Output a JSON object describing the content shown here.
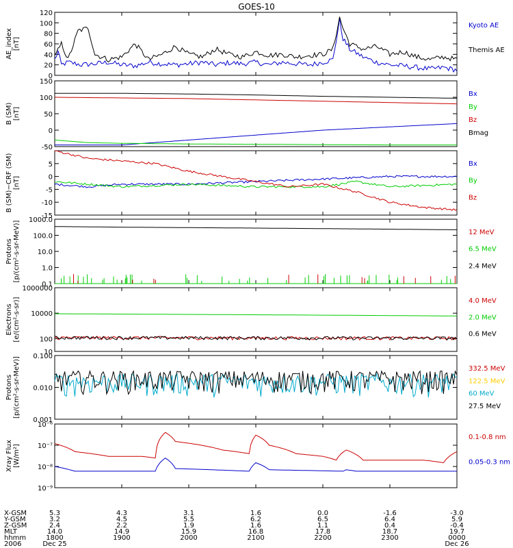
{
  "title": "GOES-10",
  "chart_data": [
    {
      "type": "line",
      "ylabel": "AE_index\n[nT]",
      "ylim": [
        0,
        120
      ],
      "yticks": [
        0,
        20,
        40,
        60,
        80,
        100,
        120
      ],
      "log": false,
      "series": [
        {
          "name": "Kyoto AE",
          "color": "#0000cc",
          "points": [
            [
              0,
              30
            ],
            [
              0.05,
              45
            ],
            [
              0.1,
              20
            ],
            [
              0.2,
              25
            ],
            [
              0.4,
              20
            ],
            [
              0.6,
              22
            ],
            [
              0.8,
              25
            ],
            [
              1.0,
              20
            ],
            [
              1.2,
              18
            ],
            [
              1.4,
              25
            ],
            [
              1.6,
              22
            ],
            [
              1.8,
              20
            ],
            [
              2.0,
              22
            ],
            [
              2.2,
              25
            ],
            [
              2.4,
              20
            ],
            [
              2.6,
              24
            ],
            [
              2.8,
              22
            ],
            [
              3.0,
              25
            ],
            [
              3.2,
              20
            ],
            [
              3.4,
              25
            ],
            [
              3.6,
              22
            ],
            [
              3.8,
              20
            ],
            [
              4.0,
              25
            ],
            [
              4.15,
              30
            ],
            [
              4.25,
              105
            ],
            [
              4.3,
              70
            ],
            [
              4.4,
              50
            ],
            [
              4.6,
              35
            ],
            [
              4.8,
              25
            ],
            [
              5.0,
              20
            ],
            [
              5.2,
              18
            ],
            [
              5.4,
              15
            ],
            [
              5.6,
              12
            ],
            [
              5.8,
              15
            ],
            [
              6.0,
              10
            ]
          ]
        },
        {
          "name": "Themis AE",
          "color": "#000000",
          "points": [
            [
              0,
              35
            ],
            [
              0.1,
              60
            ],
            [
              0.2,
              30
            ],
            [
              0.35,
              85
            ],
            [
              0.5,
              90
            ],
            [
              0.6,
              40
            ],
            [
              0.8,
              30
            ],
            [
              1.0,
              35
            ],
            [
              1.2,
              60
            ],
            [
              1.4,
              30
            ],
            [
              1.6,
              40
            ],
            [
              1.8,
              55
            ],
            [
              2.0,
              40
            ],
            [
              2.2,
              35
            ],
            [
              2.4,
              50
            ],
            [
              2.6,
              40
            ],
            [
              2.8,
              35
            ],
            [
              3.0,
              45
            ],
            [
              3.2,
              38
            ],
            [
              3.4,
              40
            ],
            [
              3.6,
              35
            ],
            [
              3.8,
              38
            ],
            [
              4.0,
              40
            ],
            [
              4.15,
              50
            ],
            [
              4.25,
              110
            ],
            [
              4.3,
              90
            ],
            [
              4.4,
              60
            ],
            [
              4.6,
              50
            ],
            [
              4.8,
              55
            ],
            [
              5.0,
              40
            ],
            [
              5.2,
              45
            ],
            [
              5.4,
              35
            ],
            [
              5.6,
              30
            ],
            [
              5.8,
              35
            ],
            [
              6.0,
              30
            ]
          ]
        }
      ]
    },
    {
      "type": "line",
      "ylabel": "B (SM)\n[nT]",
      "ylim": [
        -50,
        150
      ],
      "yticks": [
        -50,
        0,
        50,
        100,
        150
      ],
      "log": false,
      "series": [
        {
          "name": "Bx",
          "color": "#0000cc",
          "points": [
            [
              0,
              -45
            ],
            [
              1,
              -45
            ],
            [
              2,
              -30
            ],
            [
              3,
              -15
            ],
            [
              4,
              0
            ],
            [
              5,
              10
            ],
            [
              6,
              20
            ]
          ]
        },
        {
          "name": "By",
          "color": "#00cc00",
          "points": [
            [
              0,
              -30
            ],
            [
              0.5,
              -38
            ],
            [
              1,
              -40
            ],
            [
              2,
              -42
            ],
            [
              3,
              -43
            ],
            [
              4,
              -44
            ],
            [
              5,
              -45
            ],
            [
              6,
              -45
            ]
          ]
        },
        {
          "name": "Bz",
          "color": "#cc0000",
          "points": [
            [
              0,
              100
            ],
            [
              1,
              98
            ],
            [
              2,
              96
            ],
            [
              3,
              92
            ],
            [
              4,
              88
            ],
            [
              5,
              84
            ],
            [
              6,
              80
            ]
          ]
        },
        {
          "name": "Bmag",
          "color": "#000000",
          "points": [
            [
              0,
              112
            ],
            [
              1,
              112
            ],
            [
              2,
              110
            ],
            [
              3,
              107
            ],
            [
              4,
              103
            ],
            [
              5,
              100
            ],
            [
              6,
              97
            ]
          ]
        }
      ]
    },
    {
      "type": "line",
      "ylabel": "B (SM)−CRF (SM)\n[nT]",
      "ylim": [
        -15,
        10
      ],
      "yticks": [
        -15,
        -10,
        -5,
        0,
        5
      ],
      "log": false,
      "series": [
        {
          "name": "Bx",
          "color": "#0000cc",
          "points": [
            [
              0,
              -3
            ],
            [
              0.5,
              -4
            ],
            [
              1,
              -3
            ],
            [
              2,
              -3
            ],
            [
              3,
              -2
            ],
            [
              4,
              -1
            ],
            [
              5,
              0
            ],
            [
              6,
              0
            ]
          ]
        },
        {
          "name": "By",
          "color": "#00cc00",
          "points": [
            [
              0,
              -2
            ],
            [
              1,
              -4
            ],
            [
              2,
              -3
            ],
            [
              3,
              -4
            ],
            [
              4,
              -4
            ],
            [
              4.5,
              -2
            ],
            [
              5,
              -4
            ],
            [
              6,
              -3
            ]
          ]
        },
        {
          "name": "Bz",
          "color": "#cc0000",
          "points": [
            [
              0,
              10
            ],
            [
              0.5,
              7
            ],
            [
              1,
              6
            ],
            [
              1.5,
              5
            ],
            [
              2,
              2
            ],
            [
              2.5,
              0
            ],
            [
              3,
              -2
            ],
            [
              3.5,
              -4
            ],
            [
              4,
              -3
            ],
            [
              4.5,
              -6
            ],
            [
              5,
              -10
            ],
            [
              5.5,
              -12
            ],
            [
              6,
              -13
            ]
          ]
        }
      ]
    },
    {
      "type": "line",
      "ylabel": "Protons\n[p/(cm²-s-sr-MeV)]",
      "ylim": [
        0.1,
        1000
      ],
      "yticks": [
        0.1,
        1.0,
        10.0,
        100.0,
        1000.0
      ],
      "yticklabels": [
        "0.1",
        "1.0",
        "10.0",
        "100.0",
        "1000.0"
      ],
      "log": true,
      "series": [
        {
          "name": "12 MeV",
          "color": "#cc0000",
          "points": [
            [
              0,
              0.1
            ],
            [
              6,
              0.1
            ]
          ]
        },
        {
          "name": "6.5 MeV",
          "color": "#00cc00",
          "points": [
            [
              0,
              0.1
            ],
            [
              6,
              0.1
            ]
          ]
        },
        {
          "name": "2.4 MeV",
          "color": "#000000",
          "points": [
            [
              0,
              350
            ],
            [
              1,
              320
            ],
            [
              2,
              300
            ],
            [
              3,
              280
            ],
            [
              4,
              260
            ],
            [
              5,
              240
            ],
            [
              6,
              220
            ]
          ]
        }
      ]
    },
    {
      "type": "line",
      "ylabel": "Electrons\n[e/(cm²-s-sr)]",
      "ylim": [
        10,
        1000000
      ],
      "yticks": [
        10,
        100,
        10000,
        1000000
      ],
      "log": true,
      "series": [
        {
          "name": "4.0 MeV",
          "color": "#cc0000",
          "points": [
            [
              0,
              120
            ],
            [
              6,
              110
            ]
          ]
        },
        {
          "name": "2.0 MeV",
          "color": "#00cc00",
          "points": [
            [
              0,
              9000
            ],
            [
              2,
              8000
            ],
            [
              4,
              7000
            ],
            [
              6,
              6000
            ]
          ]
        },
        {
          "name": "0.6 MeV",
          "color": "#000000",
          "points": [
            [
              0,
              120
            ],
            [
              6,
              110
            ]
          ]
        }
      ]
    },
    {
      "type": "line",
      "ylabel": "Protons\n[p/(cm²-s-sr-MeV)]",
      "ylim": [
        0.001,
        0.1
      ],
      "yticks": [
        0.001,
        0.01,
        0.1
      ],
      "yticklabels": [
        "0.001",
        "0.010",
        "0.100"
      ],
      "log": true,
      "series": [
        {
          "name": "332.5 MeV",
          "color": "#cc0000",
          "points": []
        },
        {
          "name": "122.5 MeV",
          "color": "#ffcc00",
          "points": []
        },
        {
          "name": "60 MeV",
          "color": "#00aacc",
          "points": [
            [
              0,
              0.012
            ],
            [
              6,
              0.012
            ]
          ]
        },
        {
          "name": "27.5 MeV",
          "color": "#000000",
          "points": [
            [
              0,
              0.015
            ],
            [
              6,
              0.015
            ]
          ]
        }
      ]
    },
    {
      "type": "line",
      "ylabel": "Xray Flux\n[W/m²]",
      "ylim": [
        1e-09,
        1e-06
      ],
      "yticks": [
        1e-09,
        1e-08,
        1e-07,
        1e-06
      ],
      "yticklabels": [
        "10⁻⁹",
        "10⁻⁸",
        "10⁻⁷",
        "10⁻⁶"
      ],
      "log": true,
      "series": [
        {
          "name": "0.1-0.8 nm",
          "color": "#cc0000",
          "points": [
            [
              0,
              1.2e-07
            ],
            [
              0.3,
              5e-08
            ],
            [
              0.8,
              3e-08
            ],
            [
              1.3,
              3e-08
            ],
            [
              1.5,
              2.5e-08
            ],
            [
              1.65,
              4e-07
            ],
            [
              1.8,
              1.5e-07
            ],
            [
              2.5,
              6e-08
            ],
            [
              2.9,
              4e-08
            ],
            [
              3.0,
              3e-07
            ],
            [
              3.2,
              1e-07
            ],
            [
              3.6,
              4e-08
            ],
            [
              4.0,
              3e-08
            ],
            [
              4.2,
              2e-08
            ],
            [
              4.35,
              6e-08
            ],
            [
              4.6,
              2e-08
            ],
            [
              5.0,
              2e-08
            ],
            [
              5.5,
              2e-08
            ],
            [
              5.8,
              1.5e-08
            ],
            [
              6.0,
              5e-08
            ]
          ]
        },
        {
          "name": "0.05-0.3 nm",
          "color": "#0000cc",
          "points": [
            [
              0,
              1e-08
            ],
            [
              0.3,
              6e-09
            ],
            [
              1.5,
              6e-09
            ],
            [
              1.65,
              2.5e-08
            ],
            [
              1.8,
              8e-09
            ],
            [
              2.9,
              6e-09
            ],
            [
              3.0,
              1.5e-08
            ],
            [
              3.2,
              7e-09
            ],
            [
              4.3,
              6e-09
            ],
            [
              4.35,
              7e-09
            ],
            [
              4.5,
              6e-09
            ],
            [
              6,
              6e-09
            ]
          ]
        }
      ]
    }
  ],
  "x_axis": {
    "rows": [
      {
        "label": "X-GSM",
        "values": [
          "5.3",
          "4.3",
          "3.1",
          "1.6",
          "0.0",
          "-1.6",
          "-3.0"
        ]
      },
      {
        "label": "Y-GSM",
        "values": [
          "3.2",
          "4.5",
          "5.5",
          "6.2",
          "6.5",
          "6.4",
          "5.9"
        ]
      },
      {
        "label": "Z-GSM",
        "values": [
          "2.4",
          "2.2",
          "1.9",
          "1.6",
          "1.1",
          "0.4",
          "-0.4"
        ]
      },
      {
        "label": "MLT",
        "values": [
          "14.0",
          "14.9",
          "15.9",
          "16.8",
          "17.8",
          "18.7",
          "19.7"
        ]
      },
      {
        "label": "hhmm",
        "values": [
          "1800",
          "1900",
          "2000",
          "2100",
          "2200",
          "2300",
          "0000"
        ]
      },
      {
        "label": "2006",
        "values": [
          "Dec 25",
          "",
          "",
          "",
          "",
          "",
          "Dec 26"
        ]
      }
    ]
  }
}
